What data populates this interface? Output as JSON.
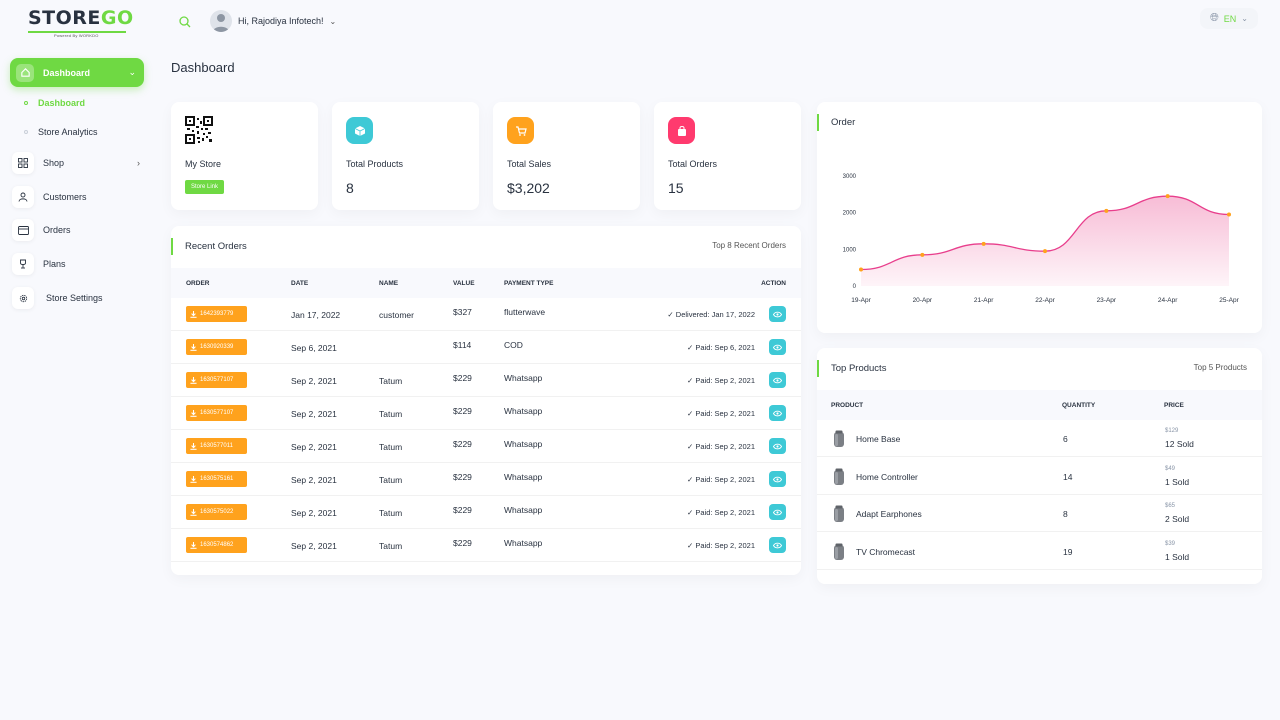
{
  "header": {
    "logo_main": "STORE",
    "logo_accent": "GO",
    "logo_sub": "Powered By WORKDO",
    "user_greeting": "Hi, Rajodiya Infotech!",
    "language": "EN"
  },
  "sidebar": {
    "dashboard_label": "Dashboard",
    "sub_items": [
      "Dashboard",
      "Store Analytics"
    ],
    "items": [
      "Shop",
      "Customers",
      "Orders",
      "Plans",
      "Store Settings"
    ]
  },
  "page_title": "Dashboard",
  "stats": {
    "my_store": "My Store",
    "store_link": "Store Link",
    "total_products_label": "Total Products",
    "total_products": "8",
    "total_sales_label": "Total Sales",
    "total_sales": "$3,202",
    "total_orders_label": "Total Orders",
    "total_orders": "15"
  },
  "recent_orders": {
    "title": "Recent Orders",
    "subtitle": "Top 8 Recent Orders",
    "columns": [
      "ORDER",
      "DATE",
      "NAME",
      "VALUE",
      "PAYMENT TYPE",
      "ACTION"
    ],
    "rows": [
      {
        "order": "1642393779",
        "date": "Jan 17, 2022",
        "name": "customer",
        "value": "$327",
        "payment": "flutterwave",
        "status": "Delivered: Jan 17, 2022"
      },
      {
        "order": "1630920339",
        "date": "Sep 6, 2021",
        "name": "",
        "value": "$114",
        "payment": "COD",
        "status": "Paid: Sep 6, 2021"
      },
      {
        "order": "1630577107",
        "date": "Sep 2, 2021",
        "name": "Tatum",
        "value": "$229",
        "payment": "Whatsapp",
        "status": "Paid: Sep 2, 2021"
      },
      {
        "order": "1630577107",
        "date": "Sep 2, 2021",
        "name": "Tatum",
        "value": "$229",
        "payment": "Whatsapp",
        "status": "Paid: Sep 2, 2021"
      },
      {
        "order": "1630577011",
        "date": "Sep 2, 2021",
        "name": "Tatum",
        "value": "$229",
        "payment": "Whatsapp",
        "status": "Paid: Sep 2, 2021"
      },
      {
        "order": "1630575161",
        "date": "Sep 2, 2021",
        "name": "Tatum",
        "value": "$229",
        "payment": "Whatsapp",
        "status": "Paid: Sep 2, 2021"
      },
      {
        "order": "1630575022",
        "date": "Sep 2, 2021",
        "name": "Tatum",
        "value": "$229",
        "payment": "Whatsapp",
        "status": "Paid: Sep 2, 2021"
      },
      {
        "order": "1630574862",
        "date": "Sep 2, 2021",
        "name": "Tatum",
        "value": "$229",
        "payment": "Whatsapp",
        "status": "Paid: Sep 2, 2021"
      }
    ]
  },
  "order_chart": {
    "title": "Order"
  },
  "chart_data": {
    "type": "area",
    "categories": [
      "19-Apr",
      "20-Apr",
      "21-Apr",
      "22-Apr",
      "23-Apr",
      "24-Apr",
      "25-Apr"
    ],
    "series": [
      {
        "values": [
          450,
          850,
          1150,
          950,
          2050,
          2450,
          1950
        ]
      }
    ],
    "ylim": [
      0,
      3000
    ],
    "yticks": [
      "0",
      "1000",
      "2000",
      "3000"
    ],
    "grid": false,
    "colors": {
      "line": "#e83e8c",
      "fill": "#f5a6c8",
      "marker": "#ffa21d"
    }
  },
  "top_products": {
    "title": "Top Products",
    "subtitle": "Top 5 Products",
    "columns": [
      "PRODUCT",
      "QUANTITY",
      "PRICE"
    ],
    "rows": [
      {
        "name": "Home Base",
        "qty": "6",
        "price": "$129",
        "sold": "12 Sold"
      },
      {
        "name": "Home Controller",
        "qty": "14",
        "price": "$49",
        "sold": "1 Sold"
      },
      {
        "name": "Adapt Earphones",
        "qty": "8",
        "price": "$65",
        "sold": "2 Sold"
      },
      {
        "name": "TV Chromecast",
        "qty": "19",
        "price": "$39",
        "sold": "1 Sold"
      }
    ]
  },
  "colors": {
    "primary": "#6fd943",
    "info": "#3ec9d6",
    "warning": "#ffa21d",
    "danger": "#ff3a6e"
  }
}
